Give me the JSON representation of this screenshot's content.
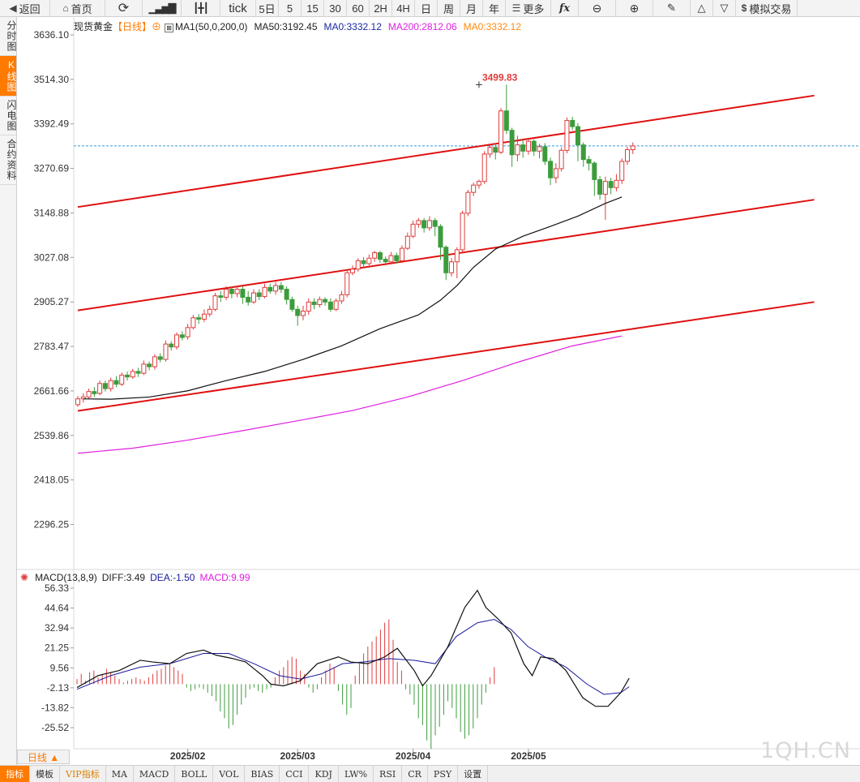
{
  "toolbar": {
    "back": "返回",
    "home": "首页",
    "tick": "tick",
    "periods": [
      "5日",
      "5",
      "15",
      "30",
      "60",
      "2H",
      "4H",
      "日",
      "周",
      "月",
      "年"
    ],
    "more": "更多",
    "fx": "fx",
    "trade": "模拟交易"
  },
  "sidebar": {
    "tabs": [
      {
        "label": "分时图",
        "active": false
      },
      {
        "label": "K线图",
        "active": true
      },
      {
        "label": "闪电图",
        "active": false
      },
      {
        "label": "合约资料",
        "active": false
      }
    ]
  },
  "legend": {
    "name": "现货黄金",
    "period": "【日线】",
    "ma_params": "MA1(50,0,200,0)",
    "ma50": "MA50:3192.45",
    "ma0": "MA0:3332.12",
    "ma200": "MA200:2812.06",
    "ma0b": "MA0:3332.12"
  },
  "macd_legend": {
    "name": "MACD(13,8,9)",
    "diff": "DIFF:3.49",
    "dea": "DEA:-1.50",
    "macd": "MACD:9.99"
  },
  "colors": {
    "up": "#e03c3c",
    "down": "#3c9c3c",
    "trendline": "#e01010",
    "ma50": "#111111",
    "ma200": "#e020e0",
    "diff": "#111111",
    "dea": "#1a1a9c",
    "accent": "#ff7a00"
  },
  "chart_data": {
    "type": "candlestick",
    "title": "现货黄金 日线",
    "price_axis_ticks": [
      "3636.10",
      "3514.30",
      "3392.49",
      "3270.69",
      "3148.88",
      "3027.08",
      "2905.27",
      "2783.47",
      "2661.66",
      "2539.86",
      "2418.05",
      "2296.25"
    ],
    "ylim": [
      2296.25,
      3636.1
    ],
    "x_labels": [
      {
        "label": "2025/02",
        "index": 20
      },
      {
        "label": "2025/03",
        "index": 40
      },
      {
        "label": "2025/04",
        "index": 61
      },
      {
        "label": "2025/05",
        "index": 82
      }
    ],
    "high_annotation": {
      "label": "3499.83",
      "index": 73,
      "value": 3499.83
    },
    "last_price_line": 3332.12,
    "candles": [
      [
        2624,
        2640,
        2618,
        2648
      ],
      [
        2640,
        2645,
        2630,
        2655
      ],
      [
        2645,
        2660,
        2640,
        2668
      ],
      [
        2660,
        2654,
        2645,
        2672
      ],
      [
        2655,
        2682,
        2650,
        2690
      ],
      [
        2682,
        2668,
        2660,
        2690
      ],
      [
        2668,
        2690,
        2660,
        2698
      ],
      [
        2690,
        2680,
        2672,
        2702
      ],
      [
        2680,
        2705,
        2675,
        2712
      ],
      [
        2705,
        2700,
        2690,
        2715
      ],
      [
        2700,
        2715,
        2695,
        2722
      ],
      [
        2715,
        2710,
        2700,
        2725
      ],
      [
        2710,
        2735,
        2705,
        2745
      ],
      [
        2735,
        2728,
        2718,
        2742
      ],
      [
        2728,
        2755,
        2720,
        2762
      ],
      [
        2755,
        2748,
        2740,
        2765
      ],
      [
        2748,
        2790,
        2742,
        2800
      ],
      [
        2790,
        2782,
        2772,
        2798
      ],
      [
        2782,
        2815,
        2775,
        2822
      ],
      [
        2815,
        2808,
        2800,
        2825
      ],
      [
        2810,
        2835,
        2802,
        2845
      ],
      [
        2835,
        2862,
        2830,
        2870
      ],
      [
        2862,
        2858,
        2845,
        2872
      ],
      [
        2858,
        2872,
        2850,
        2885
      ],
      [
        2872,
        2885,
        2865,
        2895
      ],
      [
        2885,
        2922,
        2880,
        2930
      ],
      [
        2922,
        2918,
        2905,
        2935
      ],
      [
        2918,
        2940,
        2910,
        2948
      ],
      [
        2940,
        2928,
        2915,
        2948
      ],
      [
        2928,
        2940,
        2918,
        2950
      ],
      [
        2940,
        2918,
        2900,
        2948
      ],
      [
        2918,
        2905,
        2895,
        2935
      ],
      [
        2905,
        2930,
        2900,
        2940
      ],
      [
        2930,
        2920,
        2910,
        2940
      ],
      [
        2920,
        2945,
        2915,
        2955
      ],
      [
        2945,
        2935,
        2928,
        2955
      ],
      [
        2935,
        2950,
        2925,
        2960
      ],
      [
        2950,
        2940,
        2930,
        2960
      ],
      [
        2940,
        2912,
        2898,
        2948
      ],
      [
        2912,
        2885,
        2878,
        2920
      ],
      [
        2885,
        2868,
        2840,
        2895
      ],
      [
        2868,
        2880,
        2855,
        2895
      ],
      [
        2880,
        2905,
        2870,
        2915
      ],
      [
        2905,
        2898,
        2885,
        2915
      ],
      [
        2898,
        2912,
        2890,
        2920
      ],
      [
        2912,
        2905,
        2895,
        2918
      ],
      [
        2905,
        2885,
        2878,
        2915
      ],
      [
        2885,
        2908,
        2880,
        2915
      ],
      [
        2908,
        2925,
        2900,
        2935
      ],
      [
        2925,
        2985,
        2918,
        2995
      ],
      [
        2985,
        2995,
        2978,
        3005
      ],
      [
        2995,
        3018,
        2988,
        3025
      ],
      [
        3018,
        3010,
        3000,
        3028
      ],
      [
        3010,
        3025,
        3005,
        3035
      ],
      [
        3025,
        3040,
        3015,
        3045
      ],
      [
        3040,
        3022,
        3012,
        3045
      ],
      [
        3022,
        3015,
        3005,
        3030
      ],
      [
        3015,
        3032,
        3008,
        3042
      ],
      [
        3032,
        3018,
        3010,
        3040
      ],
      [
        3018,
        3052,
        3012,
        3060
      ],
      [
        3052,
        3085,
        3048,
        3095
      ],
      [
        3085,
        3118,
        3080,
        3128
      ],
      [
        3118,
        3128,
        3108,
        3135
      ],
      [
        3128,
        3108,
        3095,
        3135
      ],
      [
        3108,
        3128,
        3100,
        3140
      ],
      [
        3128,
        3112,
        3085,
        3135
      ],
      [
        3112,
        3055,
        3020,
        3118
      ],
      [
        3055,
        2985,
        2965,
        3060
      ],
      [
        2985,
        3015,
        2975,
        3025
      ],
      [
        3015,
        3048,
        2970,
        3055
      ],
      [
        3048,
        3148,
        3040,
        3155
      ],
      [
        3148,
        3205,
        3140,
        3212
      ],
      [
        3205,
        3225,
        3195,
        3232
      ],
      [
        3225,
        3235,
        3215,
        3240
      ],
      [
        3235,
        3310,
        3228,
        3318
      ],
      [
        3310,
        3328,
        3300,
        3335
      ],
      [
        3328,
        3315,
        3295,
        3340
      ],
      [
        3315,
        3428,
        3310,
        3436
      ],
      [
        3428,
        3375,
        3365,
        3499.83
      ],
      [
        3375,
        3308,
        3275,
        3382
      ],
      [
        3308,
        3335,
        3290,
        3360
      ],
      [
        3335,
        3318,
        3300,
        3350
      ],
      [
        3318,
        3345,
        3308,
        3352
      ],
      [
        3345,
        3318,
        3305,
        3350
      ],
      [
        3318,
        3330,
        3298,
        3338
      ],
      [
        3330,
        3290,
        3280,
        3340
      ],
      [
        3290,
        3245,
        3225,
        3300
      ],
      [
        3245,
        3270,
        3230,
        3285
      ],
      [
        3270,
        3320,
        3262,
        3328
      ],
      [
        3320,
        3402,
        3312,
        3410
      ],
      [
        3402,
        3385,
        3375,
        3412
      ],
      [
        3385,
        3335,
        3290,
        3395
      ],
      [
        3335,
        3295,
        3275,
        3342
      ],
      [
        3295,
        3285,
        3265,
        3305
      ],
      [
        3285,
        3240,
        3195,
        3290
      ],
      [
        3240,
        3200,
        3185,
        3250
      ],
      [
        3200,
        3235,
        3130,
        3248
      ],
      [
        3235,
        3218,
        3200,
        3245
      ],
      [
        3218,
        3238,
        3208,
        3255
      ],
      [
        3238,
        3290,
        3228,
        3298
      ],
      [
        3290,
        3322,
        3280,
        3330
      ],
      [
        3322,
        3332.12,
        3310,
        3342
      ]
    ],
    "ma50": [
      [
        1,
        2640
      ],
      [
        6,
        2639
      ],
      [
        13,
        2645
      ],
      [
        20,
        2662
      ],
      [
        27,
        2690
      ],
      [
        34,
        2715
      ],
      [
        41,
        2748
      ],
      [
        48,
        2785
      ],
      [
        55,
        2832
      ],
      [
        62,
        2870
      ],
      [
        66,
        2910
      ],
      [
        69,
        2950
      ],
      [
        72,
        3000
      ],
      [
        76,
        3050
      ],
      [
        81,
        3085
      ],
      [
        86,
        3112
      ],
      [
        91,
        3140
      ],
      [
        96,
        3175
      ],
      [
        99,
        3192.45
      ]
    ],
    "ma200": [
      [
        0,
        2491
      ],
      [
        10,
        2505
      ],
      [
        20,
        2527
      ],
      [
        30,
        2553
      ],
      [
        40,
        2580
      ],
      [
        50,
        2608
      ],
      [
        60,
        2645
      ],
      [
        70,
        2690
      ],
      [
        80,
        2740
      ],
      [
        90,
        2785
      ],
      [
        99,
        2812.06
      ]
    ],
    "trendlines": [
      {
        "from": [
          0,
          3165
        ],
        "to": [
          134,
          3470
        ]
      },
      {
        "from": [
          0,
          2882
        ],
        "to": [
          134,
          3185
        ]
      },
      {
        "from": [
          0,
          2607
        ],
        "to": [
          134,
          2905
        ]
      }
    ],
    "macd": {
      "ylim": [
        -40,
        66
      ],
      "ticks": [
        "56.33",
        "44.64",
        "32.94",
        "21.25",
        "9.56",
        "-2.13",
        "-13.82",
        "-25.52"
      ],
      "hist": [
        3,
        6,
        2,
        7,
        8,
        4,
        6,
        9,
        7,
        5,
        3,
        1,
        2,
        3,
        4,
        3,
        2,
        4,
        6,
        8,
        9,
        11,
        12,
        10,
        8,
        6,
        -2,
        -4,
        -3,
        -2,
        -3,
        -5,
        -7,
        -10,
        -16,
        -20,
        -26,
        -24,
        -18,
        -12,
        -8,
        -3,
        -2,
        -4,
        -5,
        -3,
        -2,
        4,
        8,
        10,
        14,
        16,
        15,
        8,
        6,
        -2,
        -5,
        -3,
        4,
        8,
        12,
        10,
        -4,
        -12,
        -18,
        -14,
        5,
        12,
        18,
        22,
        25,
        28,
        32,
        36,
        38,
        26,
        13,
        8,
        -3,
        -6,
        -12,
        -20,
        -24,
        -33,
        -38,
        -30,
        -25,
        -18,
        -10,
        -14,
        -20,
        -28,
        -32,
        -30,
        -26,
        -20,
        -12,
        -5,
        4,
        9.99
      ],
      "diff": [
        [
          0,
          -2
        ],
        [
          5,
          5
        ],
        [
          10,
          8
        ],
        [
          15,
          14
        ],
        [
          18,
          13
        ],
        [
          22,
          12
        ],
        [
          26,
          18
        ],
        [
          30,
          20
        ],
        [
          33,
          17
        ],
        [
          37,
          15
        ],
        [
          40,
          13
        ],
        [
          42,
          9
        ],
        [
          44,
          5
        ],
        [
          46,
          0
        ],
        [
          49,
          -1
        ],
        [
          53,
          2
        ],
        [
          57,
          12
        ],
        [
          62,
          16
        ],
        [
          65,
          13
        ],
        [
          69,
          12
        ],
        [
          73,
          16
        ],
        [
          76,
          21
        ],
        [
          80,
          8
        ],
        [
          82,
          -1
        ],
        [
          84,
          5
        ],
        [
          88,
          22
        ],
        [
          92,
          45
        ],
        [
          95,
          55
        ],
        [
          97,
          45
        ],
        [
          100,
          38
        ],
        [
          103,
          30
        ],
        [
          106,
          12
        ],
        [
          108,
          5
        ],
        [
          110,
          16
        ],
        [
          113,
          15
        ],
        [
          116,
          8
        ],
        [
          120,
          -8
        ],
        [
          123,
          -13
        ],
        [
          126,
          -13
        ],
        [
          129,
          -5
        ],
        [
          131,
          3.49
        ]
      ],
      "dea": [
        [
          0,
          -3
        ],
        [
          8,
          5
        ],
        [
          15,
          10
        ],
        [
          22,
          12
        ],
        [
          30,
          18
        ],
        [
          36,
          18
        ],
        [
          42,
          12
        ],
        [
          48,
          5
        ],
        [
          53,
          3
        ],
        [
          58,
          6
        ],
        [
          63,
          12
        ],
        [
          68,
          13
        ],
        [
          74,
          15
        ],
        [
          80,
          14
        ],
        [
          85,
          12
        ],
        [
          90,
          28
        ],
        [
          95,
          36
        ],
        [
          99,
          38
        ],
        [
          103,
          32
        ],
        [
          107,
          22
        ],
        [
          111,
          16
        ],
        [
          116,
          10
        ],
        [
          121,
          0
        ],
        [
          125,
          -6
        ],
        [
          129,
          -5
        ],
        [
          131,
          -1.5
        ]
      ]
    }
  },
  "x_axis_labels": [
    "2025/02",
    "2025/03",
    "2025/04",
    "2025/05"
  ],
  "high_label": "3499.83",
  "bottom_bar": {
    "period": "日线 ▲",
    "items": [
      {
        "label": "指标",
        "active": true,
        "vip": false
      },
      {
        "label": "模板",
        "active": false,
        "vip": false
      },
      {
        "label": "VIP指标",
        "active": false,
        "vip": true
      },
      {
        "label": "MA",
        "active": false,
        "vip": false
      },
      {
        "label": "MACD",
        "active": false,
        "vip": false
      },
      {
        "label": "BOLL",
        "active": false,
        "vip": false
      },
      {
        "label": "VOL",
        "active": false,
        "vip": false
      },
      {
        "label": "BIAS",
        "active": false,
        "vip": false
      },
      {
        "label": "CCI",
        "active": false,
        "vip": false
      },
      {
        "label": "KDJ",
        "active": false,
        "vip": false
      },
      {
        "label": "LW%",
        "active": false,
        "vip": false
      },
      {
        "label": "RSI",
        "active": false,
        "vip": false
      },
      {
        "label": "CR",
        "active": false,
        "vip": false
      },
      {
        "label": "PSY",
        "active": false,
        "vip": false
      },
      {
        "label": "设置",
        "active": false,
        "vip": false
      }
    ]
  },
  "watermark": "1QH.CN"
}
